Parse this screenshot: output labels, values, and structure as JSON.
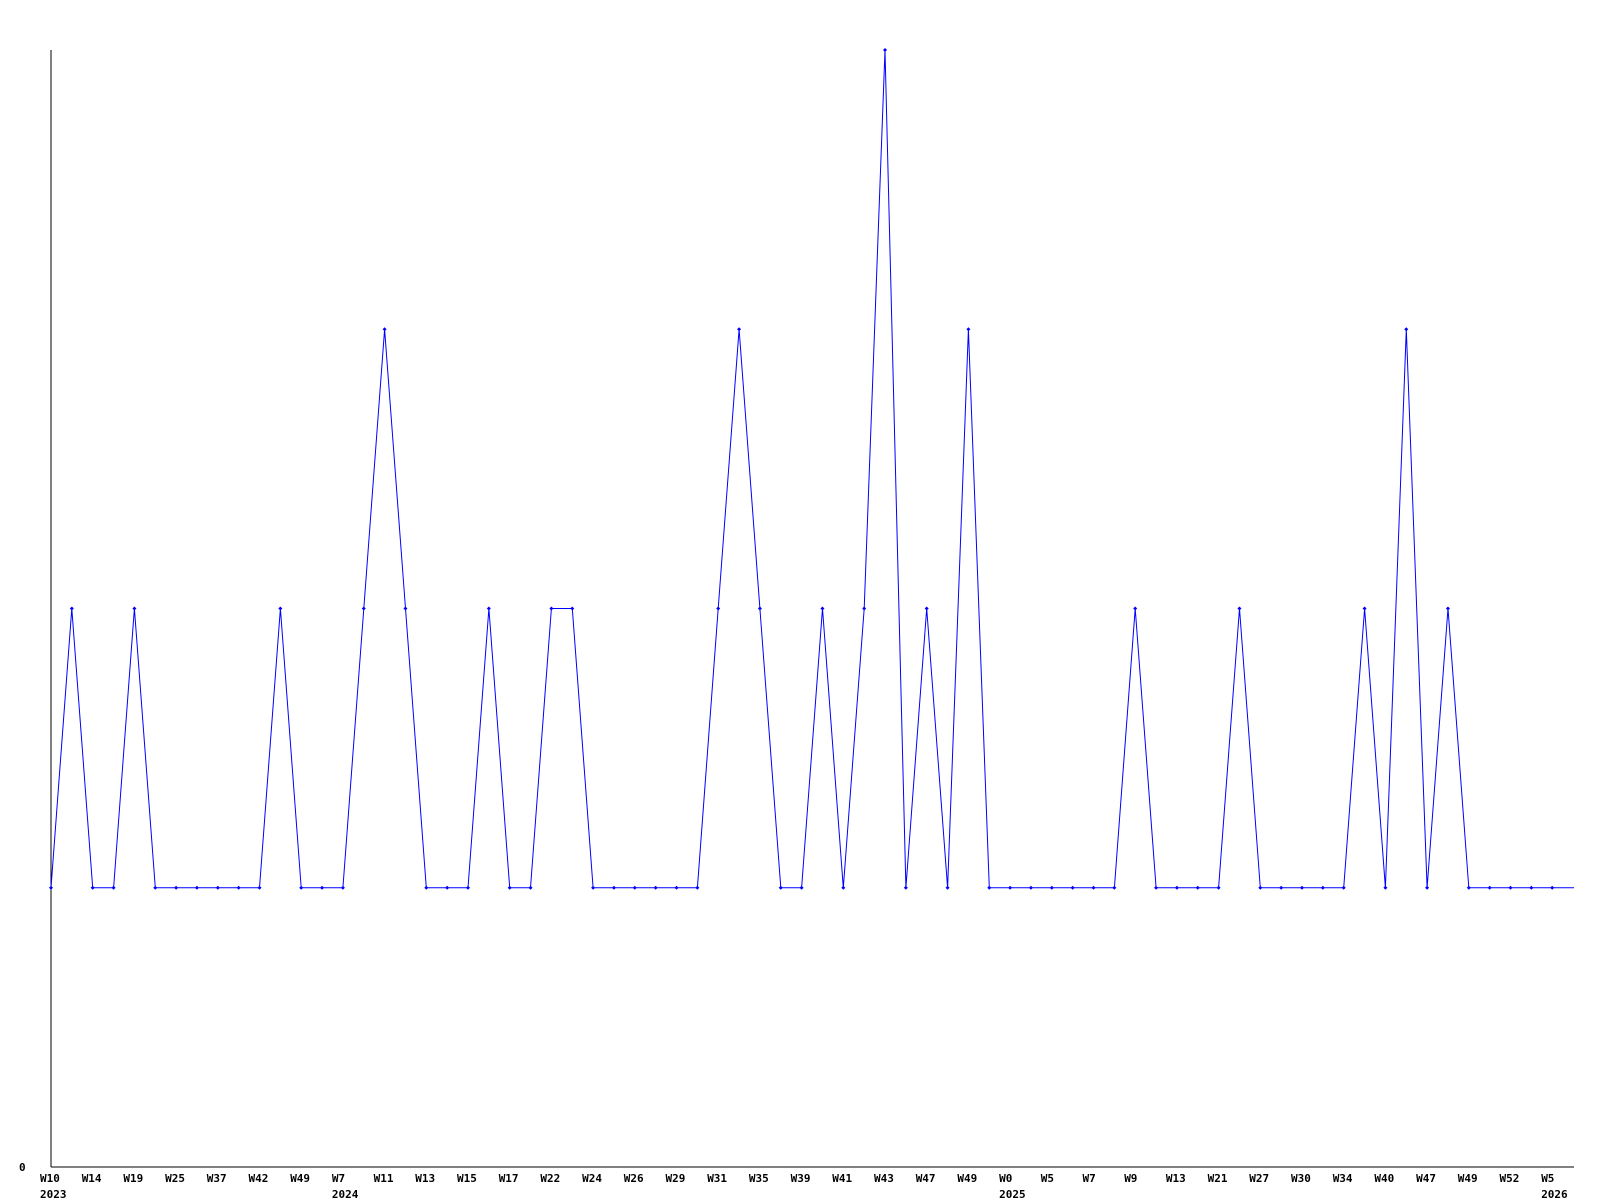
{
  "chart_data": {
    "type": "line",
    "title": "",
    "xlabel": "",
    "ylabel": "",
    "ylim": [
      0,
      4
    ],
    "y_tick_labels": [
      "0"
    ],
    "grid": false,
    "line_color": "#0000ff",
    "x_tick_labels": [
      "W10",
      "W14",
      "W19",
      "W25",
      "W37",
      "W42",
      "W49",
      "W7",
      "W11",
      "W13",
      "W15",
      "W17",
      "W22",
      "W24",
      "W26",
      "W29",
      "W31",
      "W35",
      "W39",
      "W41",
      "W43",
      "W47",
      "W49",
      "W0",
      "W5",
      "W7",
      "W9",
      "W13",
      "W21",
      "W27",
      "W30",
      "W34",
      "W40",
      "W47",
      "W49",
      "W52",
      "W5"
    ],
    "year_labels": [
      {
        "tick": 0,
        "label": "2023"
      },
      {
        "tick": 7,
        "label": "2024"
      },
      {
        "tick": 23,
        "label": "2025"
      },
      {
        "tick": 36,
        "label": "2026"
      }
    ],
    "values": [
      1,
      2,
      1,
      1,
      2,
      1,
      1,
      1,
      1,
      1,
      1,
      2,
      1,
      1,
      1,
      2,
      3,
      2,
      1,
      1,
      1,
      2,
      1,
      1,
      2,
      2,
      1,
      1,
      1,
      1,
      1,
      1,
      2,
      3,
      2,
      1,
      1,
      2,
      1,
      2,
      4,
      1,
      2,
      1,
      3,
      1,
      1,
      1,
      1,
      1,
      1,
      1,
      2,
      1,
      1,
      1,
      1,
      2,
      1,
      1,
      1,
      1,
      1,
      2,
      1,
      3,
      1,
      2,
      1,
      1,
      1,
      1,
      1
    ]
  }
}
